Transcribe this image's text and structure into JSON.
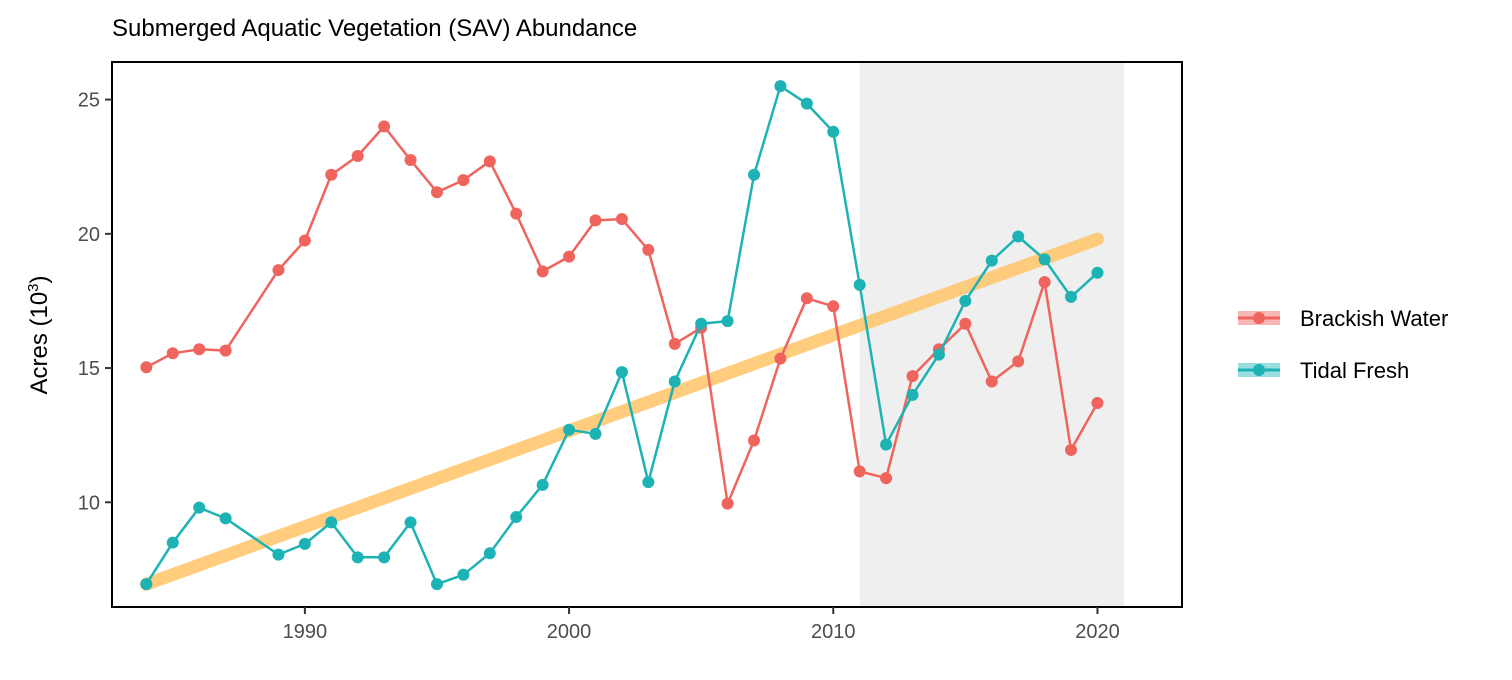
{
  "chart_data": {
    "type": "line",
    "title": "Submerged Aquatic Vegetation (SAV) Abundance",
    "xlabel": "",
    "ylabel": "Acres (10",
    "ylabel_sup": "3",
    "ylabel_close": ")",
    "xlim": [
      1982.7,
      2023.2
    ],
    "ylim": [
      6.1,
      26.4
    ],
    "x_ticks": [
      1990,
      2000,
      2010,
      2020
    ],
    "y_ticks": [
      10,
      15,
      20,
      25
    ],
    "grid": false,
    "legend_position": "right",
    "shaded_region": {
      "x_start": 2011,
      "x_end": 2021,
      "color": "#efefef"
    },
    "trend_line": {
      "x": [
        1984,
        2020
      ],
      "y": [
        6.95,
        19.8
      ],
      "color": "#ffc870"
    },
    "series": [
      {
        "name": "Brackish Water",
        "color": "#f0645e",
        "points": [
          [
            1984,
            15.03
          ],
          [
            1985,
            15.55
          ],
          [
            1986,
            15.7
          ],
          [
            1987,
            15.65
          ],
          [
            1989,
            18.65
          ],
          [
            1990,
            19.75
          ],
          [
            1991,
            22.2
          ],
          [
            1992,
            22.9
          ],
          [
            1993,
            24.0
          ],
          [
            1994,
            22.75
          ],
          [
            1995,
            21.55
          ],
          [
            1996,
            22.0
          ],
          [
            1997,
            22.7
          ],
          [
            1998,
            20.75
          ],
          [
            1999,
            18.6
          ],
          [
            2000,
            19.15
          ],
          [
            2001,
            20.5
          ],
          [
            2002,
            20.55
          ],
          [
            2003,
            19.4
          ],
          [
            2004,
            15.9
          ],
          [
            2005,
            16.5
          ],
          [
            2006,
            9.95
          ],
          [
            2007,
            12.3
          ],
          [
            2008,
            15.35
          ],
          [
            2009,
            17.6
          ],
          [
            2010,
            17.3
          ],
          [
            2011,
            11.15
          ],
          [
            2012,
            10.9
          ],
          [
            2013,
            14.7
          ],
          [
            2014,
            15.7
          ],
          [
            2015,
            16.65
          ],
          [
            2016,
            14.5
          ],
          [
            2017,
            15.25
          ],
          [
            2018,
            18.2
          ],
          [
            2019,
            11.95
          ],
          [
            2020,
            13.7
          ]
        ]
      },
      {
        "name": "Tidal Fresh",
        "color": "#1db3b5",
        "points": [
          [
            1984,
            6.95
          ],
          [
            1985,
            8.5
          ],
          [
            1986,
            9.8
          ],
          [
            1987,
            9.4
          ],
          [
            1989,
            8.05
          ],
          [
            1990,
            8.45
          ],
          [
            1991,
            9.25
          ],
          [
            1992,
            7.95
          ],
          [
            1993,
            7.95
          ],
          [
            1994,
            9.25
          ],
          [
            1995,
            6.95
          ],
          [
            1996,
            7.3
          ],
          [
            1997,
            8.1
          ],
          [
            1998,
            9.45
          ],
          [
            1999,
            10.65
          ],
          [
            2000,
            12.7
          ],
          [
            2001,
            12.55
          ],
          [
            2002,
            14.85
          ],
          [
            2003,
            10.75
          ],
          [
            2004,
            14.5
          ],
          [
            2005,
            16.65
          ],
          [
            2006,
            16.75
          ],
          [
            2007,
            22.2
          ],
          [
            2008,
            25.5
          ],
          [
            2009,
            24.85
          ],
          [
            2010,
            23.8
          ],
          [
            2011,
            18.1
          ],
          [
            2012,
            12.15
          ],
          [
            2013,
            14.0
          ],
          [
            2014,
            15.5
          ],
          [
            2015,
            17.5
          ],
          [
            2016,
            19.0
          ],
          [
            2017,
            19.9
          ],
          [
            2018,
            19.05
          ],
          [
            2019,
            17.65
          ],
          [
            2020,
            18.55
          ]
        ]
      }
    ]
  }
}
